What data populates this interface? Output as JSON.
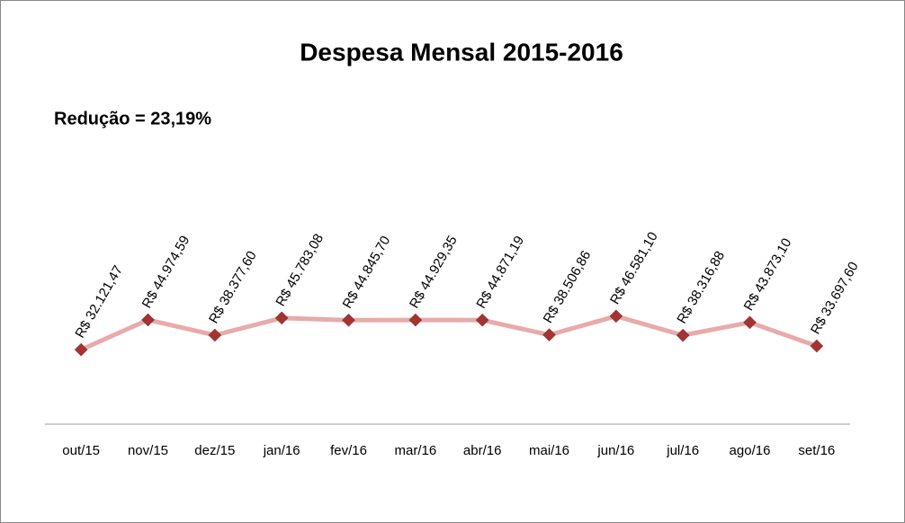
{
  "chart_data": {
    "type": "line",
    "title": "Despesa Mensal 2015-2016",
    "annotation": "Redução = 23,19%",
    "categories": [
      "out/15",
      "nov/15",
      "dez/15",
      "jan/16",
      "fev/16",
      "mar/16",
      "abr/16",
      "mai/16",
      "jun/16",
      "jul/16",
      "ago/16",
      "set/16"
    ],
    "values": [
      32121.47,
      44974.59,
      38377.6,
      45783.08,
      44845.7,
      44929.35,
      44871.19,
      38506.86,
      46581.1,
      38316.88,
      43873.1,
      33697.6
    ],
    "value_labels": [
      "R$ 32.121,47",
      "R$ 44.974,59",
      "R$ 38.377,60",
      "R$ 45.783,08",
      "R$ 44.845,70",
      "R$ 44.929,35",
      "R$ 44.871,19",
      "R$ 38.506,86",
      "R$ 46.581,10",
      "R$ 38.316,88",
      "R$ 43.873,10",
      "R$ 33.697,60"
    ],
    "line_color": "#e8aaaa",
    "marker_color": "#a33434",
    "ylim": [
      0,
      100000
    ]
  }
}
